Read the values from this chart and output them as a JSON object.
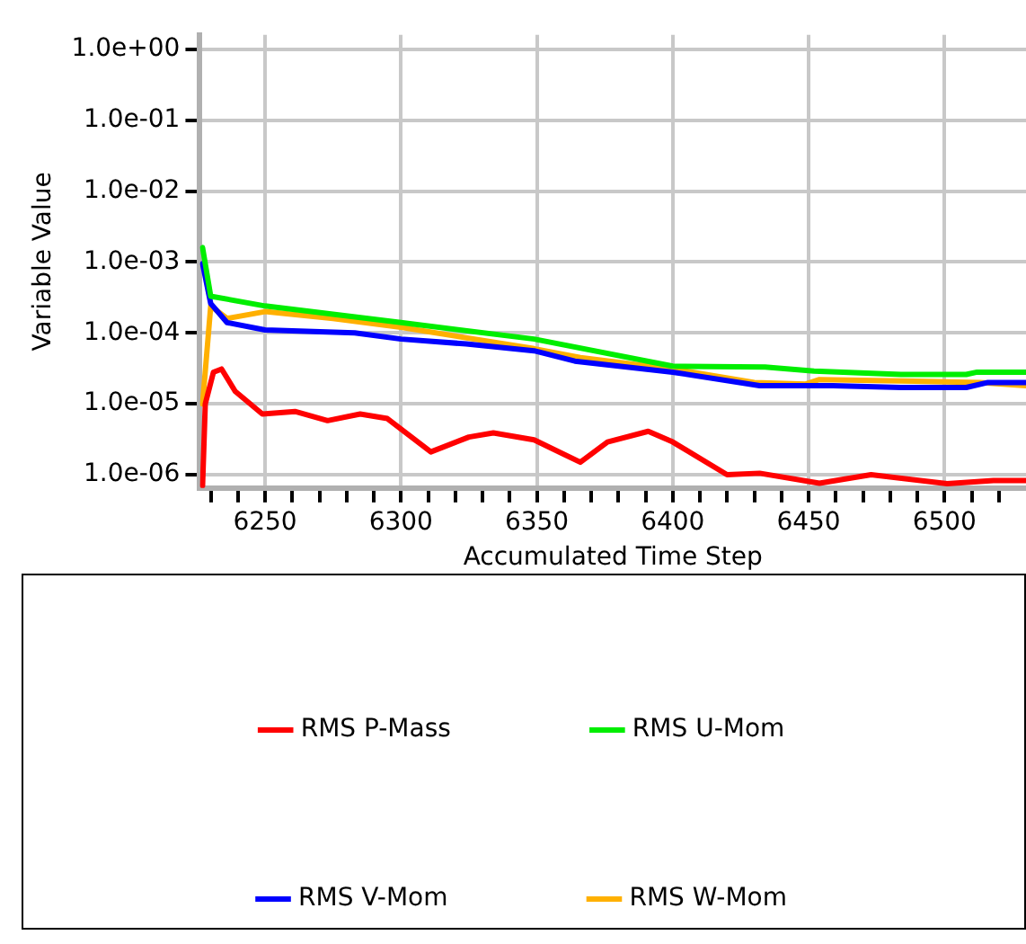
{
  "chart_data": {
    "type": "line",
    "xlabel": "Accumulated Time Step",
    "ylabel": "Variable Value",
    "log": "y",
    "grid": true,
    "legend": "bottom",
    "marker": "none",
    "line_style": "solid",
    "xlim": [
      6226,
      6530
    ],
    "xticks": [
      {
        "value": 6230,
        "label": null
      },
      {
        "value": 6240,
        "label": null
      },
      6250,
      {
        "value": 6260,
        "label": null
      },
      {
        "value": 6270,
        "label": null
      },
      {
        "value": 6280,
        "label": null
      },
      {
        "value": 6290,
        "label": null
      },
      6300,
      {
        "value": 6310,
        "label": null
      },
      {
        "value": 6320,
        "label": null
      },
      {
        "value": 6330,
        "label": null
      },
      {
        "value": 6340,
        "label": null
      },
      6350,
      {
        "value": 6360,
        "label": null
      },
      {
        "value": 6370,
        "label": null
      },
      {
        "value": 6380,
        "label": null
      },
      {
        "value": 6390,
        "label": null
      },
      6400,
      {
        "value": 6410,
        "label": null
      },
      {
        "value": 6420,
        "label": null
      },
      {
        "value": 6430,
        "label": null
      },
      {
        "value": 6440,
        "label": null
      },
      6450,
      {
        "value": 6460,
        "label": null
      },
      {
        "value": 6470,
        "label": null
      },
      {
        "value": 6480,
        "label": null
      },
      {
        "value": 6490,
        "label": null
      },
      6500,
      {
        "value": 6510,
        "label": null
      },
      {
        "value": 6520,
        "label": null
      }
    ],
    "ylim": [
      6.5e-07,
      1.6
    ],
    "yticks": [
      {
        "value": 1e-06,
        "label": "1.0e-06"
      },
      {
        "value": 1e-05,
        "label": "1.0e-05"
      },
      {
        "value": 0.0001,
        "label": "1.0e-04"
      },
      {
        "value": 0.001,
        "label": "1.0e-03"
      },
      {
        "value": 0.01,
        "label": "1.0e-02"
      },
      {
        "value": 0.1,
        "label": "1.0e-01"
      },
      {
        "value": 1,
        "label": "1.0e+00"
      }
    ],
    "series": [
      {
        "name": "RMS P-Mass",
        "color": "#ff0000",
        "x": [
          6227,
          6228,
          6231,
          6234,
          6239,
          6249,
          6261,
          6273,
          6285,
          6295,
          6311,
          6325,
          6334,
          6349,
          6366,
          6376,
          6391,
          6400,
          6420,
          6432,
          6454,
          6473,
          6501,
          6518,
          6530
        ],
        "values": [
          7e-07,
          1e-05,
          2.8e-05,
          3.1e-05,
          1.5e-05,
          7.2e-06,
          7.8e-06,
          5.8e-06,
          7.2e-06,
          6.2e-06,
          2.1e-06,
          3.4e-06,
          3.9e-06,
          3.1e-06,
          1.5e-06,
          2.9e-06,
          4.1e-06,
          2.9e-06,
          1e-06,
          1.05e-06,
          7.6e-07,
          1e-06,
          7.5e-07,
          8.3e-07,
          8.3e-07
        ]
      },
      {
        "name": "RMS U-Mom",
        "color": "#00ee00",
        "x": [
          6227,
          6230,
          6250,
          6300,
          6349,
          6400,
          6434,
          6452,
          6484,
          6508,
          6512,
          6530
        ],
        "values": [
          0.0016,
          0.00033,
          0.00024,
          0.00014,
          8.2e-05,
          3.4e-05,
          3.3e-05,
          2.9e-05,
          2.6e-05,
          2.6e-05,
          2.8e-05,
          2.8e-05
        ]
      },
      {
        "name": "RMS V-Mom",
        "color": "#0000ff",
        "x": [
          6227,
          6230,
          6236,
          6250,
          6283,
          6300,
          6324,
          6349,
          6364,
          6400,
          6432,
          6459,
          6484,
          6508,
          6516,
          6530
        ],
        "values": [
          0.00095,
          0.00026,
          0.00014,
          0.00011,
          0.0001,
          8.2e-05,
          7e-05,
          5.6e-05,
          4e-05,
          2.8e-05,
          1.8e-05,
          1.8e-05,
          1.7e-05,
          1.7e-05,
          2e-05,
          2e-05
        ]
      },
      {
        "name": "RMS W-Mom",
        "color": "#ffb000",
        "x": [
          6227,
          6230,
          6236,
          6250,
          6275,
          6300,
          6349,
          6366,
          6400,
          6430,
          6449,
          6454,
          6513,
          6530
        ],
        "values": [
          1e-05,
          0.00024,
          0.00016,
          0.0002,
          0.00016,
          0.00012,
          6e-05,
          4.5e-05,
          3.1e-05,
          2e-05,
          1.9e-05,
          2.2e-05,
          2e-05,
          1.8e-05
        ]
      }
    ]
  }
}
